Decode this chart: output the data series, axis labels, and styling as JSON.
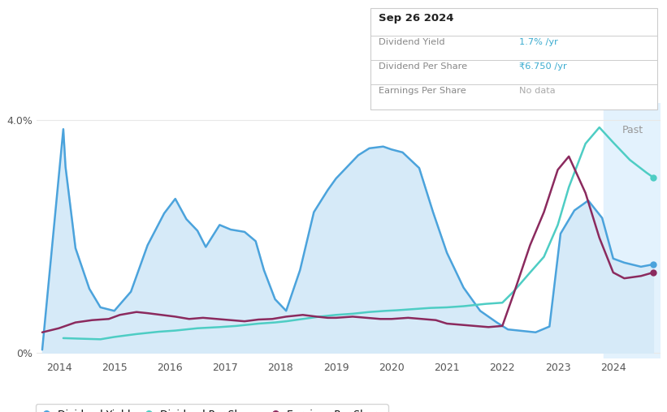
{
  "x_min": 2013.6,
  "x_max": 2024.85,
  "y_min": -0.1,
  "y_max": 4.3,
  "x_ticks": [
    2014,
    2015,
    2016,
    2017,
    2018,
    2019,
    2020,
    2021,
    2022,
    2023,
    2024
  ],
  "past_shade_start": 2023.83,
  "past_label": "Past",
  "info_box": {
    "date": "Sep 26 2024",
    "rows": [
      {
        "label": "Dividend Yield",
        "value": "1.7% /yr",
        "value_color": "#3AABCF"
      },
      {
        "label": "Dividend Per Share",
        "value": "₹6.750 /yr",
        "value_color": "#3AABCF"
      },
      {
        "label": "Earnings Per Share",
        "value": "No data",
        "value_color": "#AAAAAA"
      }
    ]
  },
  "colors": {
    "dividend_yield": "#4BA3DC",
    "dividend_per_share": "#4ECDC4",
    "earnings_per_share": "#8B2A5E",
    "fill_blue": "#D6EAF8",
    "past_shade": "#E3F2FD",
    "grid": "#E8E8E8",
    "box_border": "#CCCCCC",
    "background": "#FFFFFF"
  },
  "dividend_yield_x": [
    2013.7,
    2014.08,
    2014.12,
    2014.3,
    2014.55,
    2014.75,
    2015.0,
    2015.3,
    2015.6,
    2015.9,
    2016.1,
    2016.3,
    2016.5,
    2016.65,
    2016.9,
    2017.1,
    2017.35,
    2017.55,
    2017.7,
    2017.9,
    2018.1,
    2018.35,
    2018.6,
    2018.85,
    2019.0,
    2019.2,
    2019.4,
    2019.6,
    2019.85,
    2020.0,
    2020.2,
    2020.5,
    2020.75,
    2021.0,
    2021.3,
    2021.6,
    2021.9,
    2022.1,
    2022.3,
    2022.6,
    2022.85,
    2023.05,
    2023.3,
    2023.55,
    2023.8,
    2024.0,
    2024.2,
    2024.5,
    2024.72
  ],
  "dividend_yield_y": [
    0.05,
    3.85,
    3.2,
    1.8,
    1.1,
    0.78,
    0.72,
    1.05,
    1.85,
    2.4,
    2.65,
    2.3,
    2.1,
    1.82,
    2.2,
    2.12,
    2.08,
    1.92,
    1.42,
    0.92,
    0.72,
    1.42,
    2.42,
    2.8,
    3.0,
    3.2,
    3.4,
    3.52,
    3.55,
    3.5,
    3.45,
    3.18,
    2.42,
    1.72,
    1.12,
    0.72,
    0.52,
    0.4,
    0.38,
    0.35,
    0.45,
    2.05,
    2.45,
    2.62,
    2.32,
    1.62,
    1.55,
    1.48,
    1.52
  ],
  "dividend_per_share_x": [
    2014.08,
    2014.4,
    2014.75,
    2015.0,
    2015.4,
    2015.8,
    2016.1,
    2016.5,
    2016.9,
    2017.2,
    2017.6,
    2017.9,
    2018.1,
    2018.4,
    2018.7,
    2019.0,
    2019.3,
    2019.6,
    2019.9,
    2020.1,
    2020.4,
    2020.7,
    2021.0,
    2021.3,
    2021.5,
    2021.7,
    2022.0,
    2022.2,
    2022.5,
    2022.75,
    2023.0,
    2023.2,
    2023.5,
    2023.75,
    2024.0,
    2024.3,
    2024.6,
    2024.72
  ],
  "dividend_per_share_y": [
    0.25,
    0.24,
    0.23,
    0.27,
    0.32,
    0.36,
    0.38,
    0.42,
    0.44,
    0.46,
    0.5,
    0.52,
    0.54,
    0.58,
    0.62,
    0.65,
    0.67,
    0.7,
    0.72,
    0.73,
    0.75,
    0.77,
    0.78,
    0.8,
    0.82,
    0.84,
    0.86,
    1.05,
    1.38,
    1.65,
    2.2,
    2.85,
    3.6,
    3.88,
    3.62,
    3.32,
    3.1,
    3.02
  ],
  "earnings_per_share_x": [
    2013.7,
    2014.0,
    2014.3,
    2014.6,
    2014.9,
    2015.1,
    2015.4,
    2015.6,
    2015.85,
    2016.1,
    2016.35,
    2016.6,
    2016.85,
    2017.1,
    2017.35,
    2017.6,
    2017.85,
    2018.1,
    2018.4,
    2018.65,
    2018.85,
    2019.0,
    2019.3,
    2019.55,
    2019.8,
    2020.0,
    2020.3,
    2020.55,
    2020.8,
    2021.0,
    2021.25,
    2021.5,
    2021.75,
    2022.0,
    2022.2,
    2022.5,
    2022.75,
    2023.0,
    2023.2,
    2023.5,
    2023.75,
    2024.0,
    2024.2,
    2024.5,
    2024.72
  ],
  "earnings_per_share_y": [
    0.35,
    0.42,
    0.52,
    0.56,
    0.58,
    0.65,
    0.7,
    0.68,
    0.65,
    0.62,
    0.58,
    0.6,
    0.58,
    0.56,
    0.54,
    0.57,
    0.58,
    0.62,
    0.65,
    0.62,
    0.6,
    0.6,
    0.62,
    0.6,
    0.58,
    0.58,
    0.6,
    0.58,
    0.56,
    0.5,
    0.48,
    0.46,
    0.44,
    0.46,
    1.0,
    1.85,
    2.42,
    3.15,
    3.38,
    2.75,
    1.98,
    1.38,
    1.28,
    1.32,
    1.38
  ]
}
